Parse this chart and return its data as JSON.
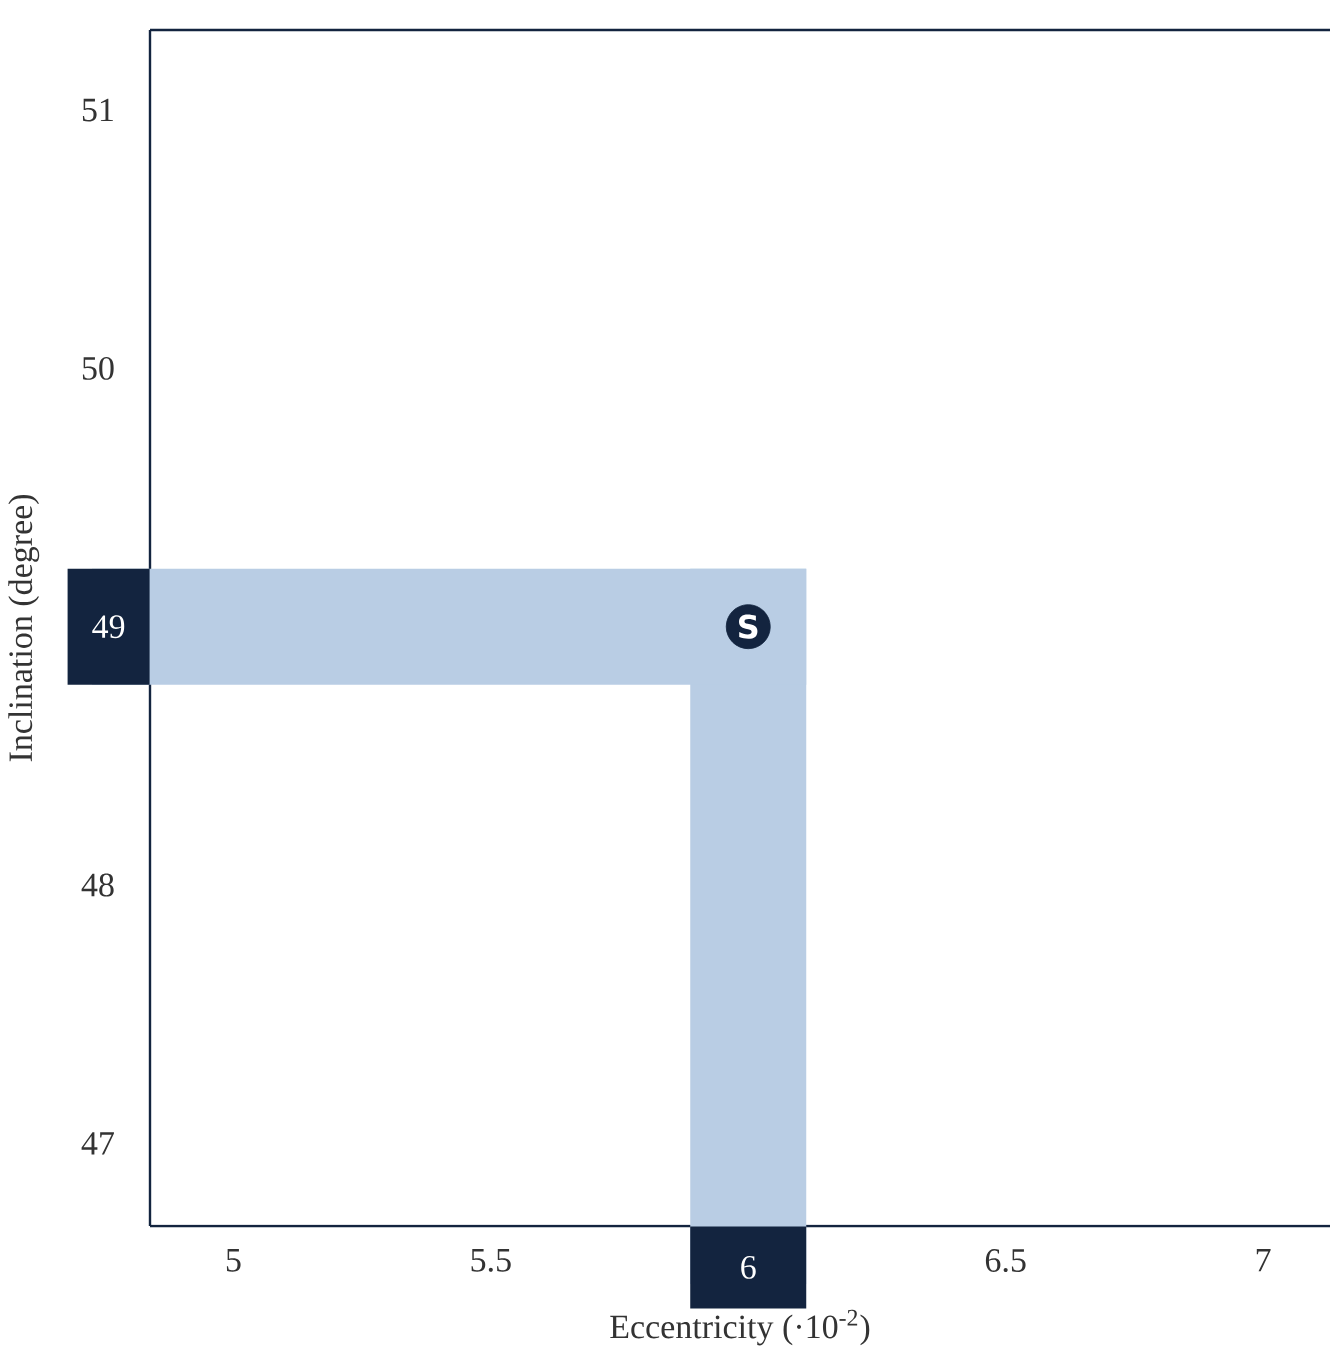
{
  "chart_data": {
    "type": "scatter",
    "x": [
      6
    ],
    "values": [
      49
    ],
    "color": "#13243f",
    "marker": "circle",
    "xlabel": "Eccentricity (·10$^{-2}$)",
    "ylabel": "Inclination (degree)",
    "xlim": [
      4.838,
      7.13
    ],
    "ylim": [
      46.68,
      51.31
    ],
    "xticks": [
      5,
      5.5,
      6.5,
      7
    ],
    "yticks": [
      47,
      48,
      50,
      51
    ],
    "ref_lines": [
      {
        "axis": "x",
        "value": 6,
        "label": "6",
        "color": "#b9cde4"
      },
      {
        "axis": "y",
        "value": 49,
        "label": "49",
        "color": "#b9cde4"
      }
    ],
    "annotations": [
      {
        "text": "S",
        "x": 6,
        "y": 49
      }
    ]
  }
}
